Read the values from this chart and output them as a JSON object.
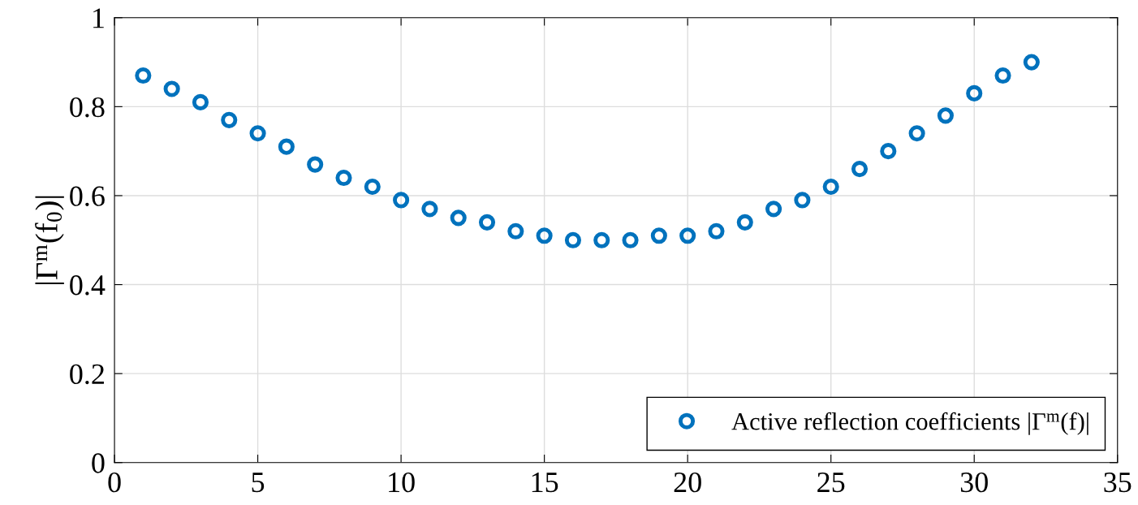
{
  "chart_data": {
    "type": "scatter",
    "ylabel": "|Γ$^{m}$(f$_{0}$)|",
    "x": [
      1,
      2,
      3,
      4,
      5,
      6,
      7,
      8,
      9,
      10,
      11,
      12,
      13,
      14,
      15,
      16,
      17,
      18,
      19,
      20,
      21,
      22,
      23,
      24,
      25,
      26,
      27,
      28,
      29,
      30,
      31,
      32
    ],
    "series": [
      {
        "name": "Active reflection coefficients |Γ$^{m}$(f)|",
        "color": "#0072bd",
        "values": [
          0.87,
          0.84,
          0.81,
          0.77,
          0.74,
          0.71,
          0.67,
          0.64,
          0.62,
          0.59,
          0.57,
          0.55,
          0.54,
          0.52,
          0.51,
          0.5,
          0.5,
          0.5,
          0.51,
          0.51,
          0.52,
          0.54,
          0.57,
          0.59,
          0.62,
          0.66,
          0.7,
          0.74,
          0.78,
          0.83,
          0.87,
          0.9
        ]
      }
    ],
    "xlim": [
      0,
      35
    ],
    "xticks": [
      0,
      5,
      10,
      15,
      20,
      25,
      30,
      35
    ],
    "ylim": [
      0,
      1
    ],
    "yticks": [
      0,
      0.2,
      0.4,
      0.6,
      0.8,
      1
    ],
    "grid": true,
    "legend": "lower right",
    "marker": "circle"
  }
}
